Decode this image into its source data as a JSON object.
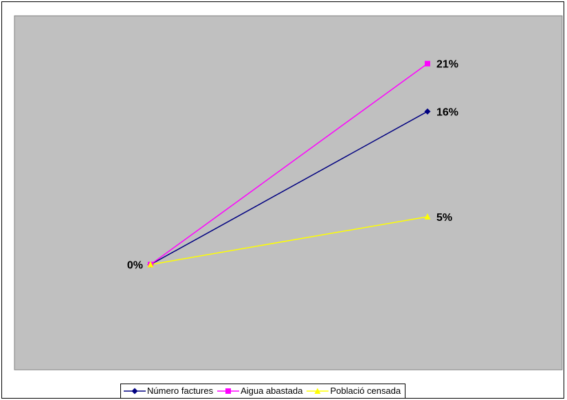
{
  "chart_data": {
    "type": "line",
    "categories": [
      "",
      ""
    ],
    "series": [
      {
        "name": "Número factures",
        "values": [
          0,
          16
        ],
        "labels": [
          "",
          "16%"
        ],
        "color": "#000080",
        "marker": "diamond"
      },
      {
        "name": "Aigua abastada",
        "values": [
          0,
          21
        ],
        "labels": [
          "",
          "21%"
        ],
        "color": "#ff00ff",
        "marker": "square"
      },
      {
        "name": "Població censada",
        "values": [
          0,
          5
        ],
        "labels": [
          "0%",
          "5%"
        ],
        "color": "#ffff00",
        "marker": "triangle"
      }
    ],
    "ylim": [
      -11,
      26
    ],
    "grid": false,
    "legend_position": "bottom",
    "plot_background": "#c0c0c0",
    "label_color": "#000000"
  }
}
